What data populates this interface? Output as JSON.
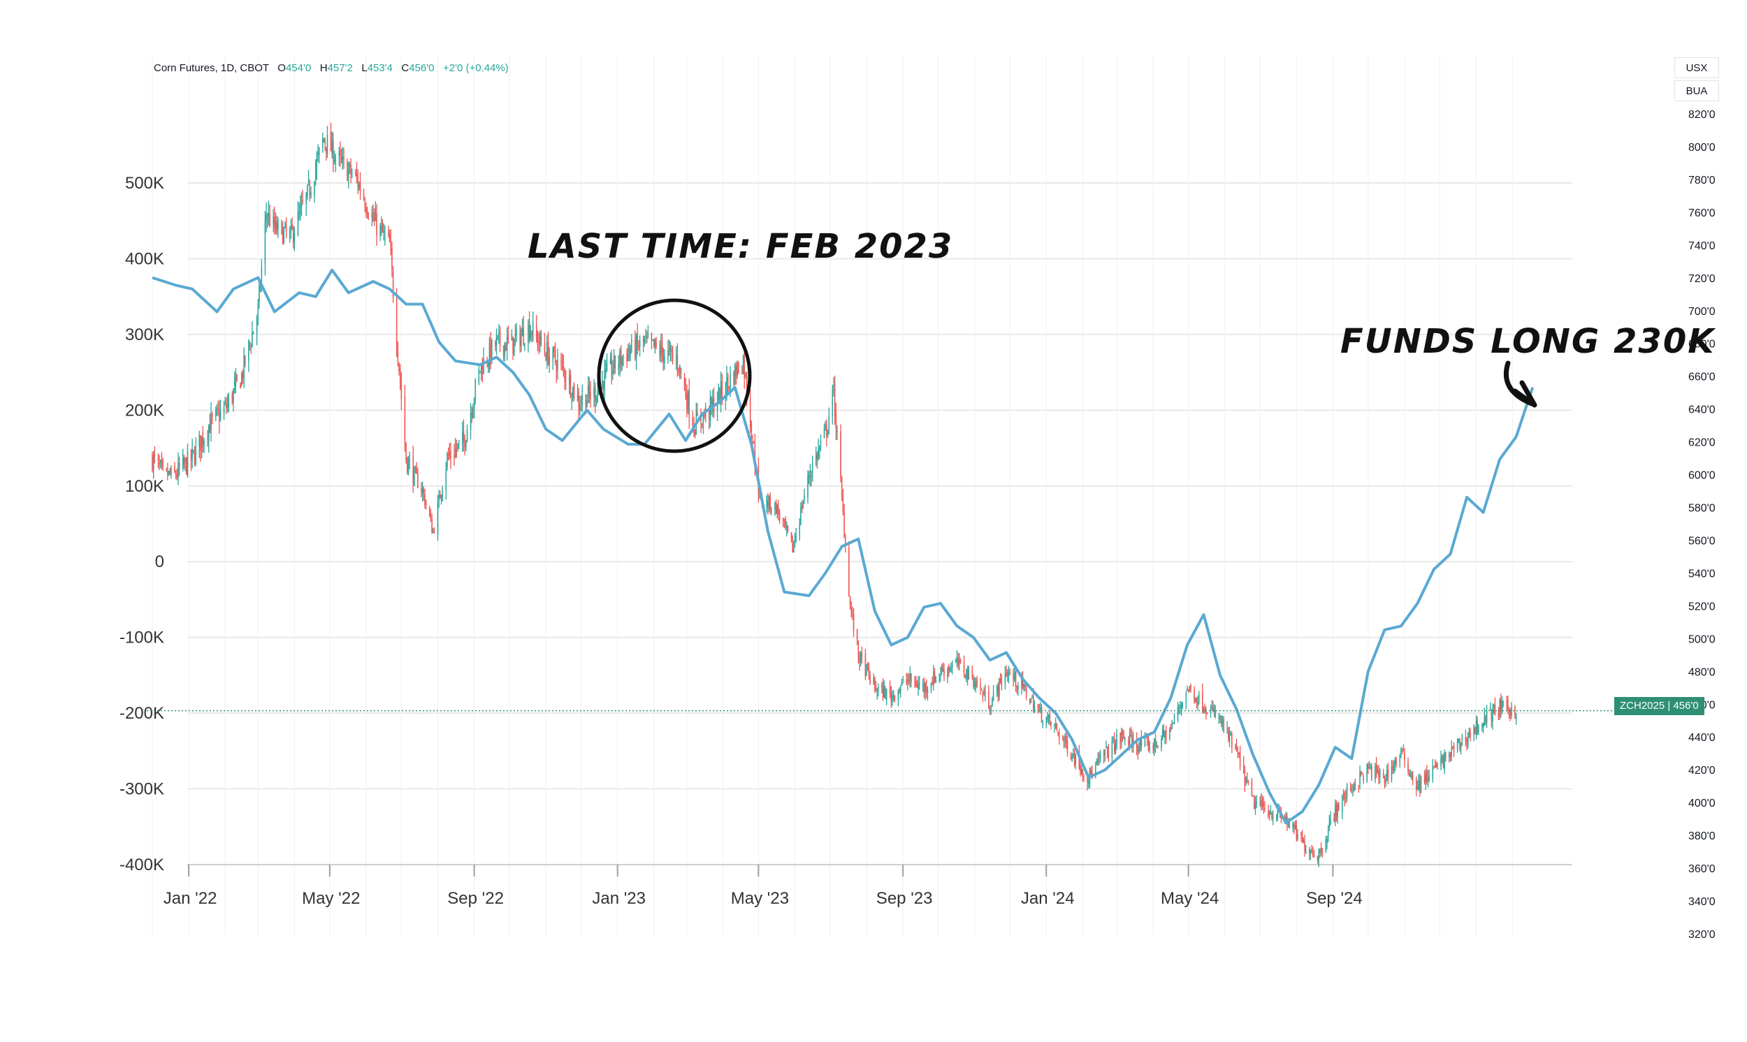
{
  "header": {
    "symbol": "Corn Futures, 1D, CBOT",
    "open_label": "O",
    "open": "454'0",
    "high_label": "H",
    "high": "457'2",
    "low_label": "L",
    "low": "453'4",
    "close_label": "C",
    "close": "456'0",
    "change": "+2'0 (+0.44%)"
  },
  "units": {
    "top": "USX",
    "bottom": "BUA"
  },
  "price_tag": {
    "symbol": "ZCH2025",
    "price": "456'0"
  },
  "annotations": {
    "left": "LAST TIME: FEB 2023",
    "right": "FUNDS LONG 230K"
  },
  "colors": {
    "up": "#26a69a",
    "down": "#ef5350",
    "positions_line": "#5aa9d2",
    "grid": "#e8e8e8",
    "annotation": "#111111",
    "tag": "#2f8f74"
  },
  "chart_data": {
    "type": "line",
    "x_tick_labels": [
      "Jan '22",
      "May '22",
      "Sep '22",
      "Jan '23",
      "May '23",
      "Sep '23",
      "Jan '24",
      "May '24",
      "Sep '24"
    ],
    "x_tick_dates": [
      "2022-01-01",
      "2022-05-01",
      "2022-09-01",
      "2023-01-01",
      "2023-05-01",
      "2023-09-01",
      "2024-01-01",
      "2024-05-01",
      "2024-09-01"
    ],
    "x_range": [
      "2021-12-01",
      "2025-02-28"
    ],
    "y_left": {
      "label": "",
      "ticks": [
        "500K",
        "400K",
        "300K",
        "200K",
        "100K",
        "0",
        "-100K",
        "-200K",
        "-300K",
        "-400K"
      ],
      "tick_values": [
        500000,
        400000,
        300000,
        200000,
        100000,
        0,
        -100000,
        -200000,
        -300000,
        -400000
      ],
      "range": [
        -400000,
        500000
      ]
    },
    "y_right": {
      "label": "",
      "ticks": [
        "820'0",
        "800'0",
        "780'0",
        "760'0",
        "740'0",
        "720'0",
        "700'0",
        "680'0",
        "660'0",
        "640'0",
        "620'0",
        "600'0",
        "580'0",
        "560'0",
        "540'0",
        "520'0",
        "500'0",
        "480'0",
        "460'0",
        "440'0",
        "420'0",
        "400'0",
        "380'0",
        "360'0",
        "340'0",
        "320'0"
      ],
      "tick_values": [
        820,
        800,
        780,
        760,
        740,
        720,
        700,
        680,
        660,
        640,
        620,
        600,
        580,
        560,
        540,
        520,
        500,
        480,
        460,
        440,
        420,
        400,
        380,
        360,
        340,
        320
      ],
      "range": [
        320,
        820
      ]
    },
    "grid": true,
    "series": [
      {
        "name": "",
        "axis": "left",
        "points": [
          [
            "2021-12-01",
            375000
          ],
          [
            "2021-12-21",
            365000
          ],
          [
            "2022-01-04",
            360000
          ],
          [
            "2022-01-25",
            330000
          ],
          [
            "2022-02-08",
            360000
          ],
          [
            "2022-03-01",
            375000
          ],
          [
            "2022-03-15",
            330000
          ],
          [
            "2022-04-05",
            355000
          ],
          [
            "2022-04-19",
            350000
          ],
          [
            "2022-05-03",
            385000
          ],
          [
            "2022-05-17",
            355000
          ],
          [
            "2022-06-07",
            370000
          ],
          [
            "2022-06-21",
            360000
          ],
          [
            "2022-07-05",
            340000
          ],
          [
            "2022-07-19",
            340000
          ],
          [
            "2022-08-02",
            290000
          ],
          [
            "2022-08-16",
            265000
          ],
          [
            "2022-09-06",
            260000
          ],
          [
            "2022-09-20",
            270000
          ],
          [
            "2022-10-04",
            250000
          ],
          [
            "2022-10-18",
            220000
          ],
          [
            "2022-11-01",
            175000
          ],
          [
            "2022-11-15",
            160000
          ],
          [
            "2022-12-06",
            200000
          ],
          [
            "2022-12-20",
            175000
          ],
          [
            "2023-01-10",
            155000
          ],
          [
            "2023-01-24",
            155000
          ],
          [
            "2023-02-14",
            195000
          ],
          [
            "2023-02-28",
            160000
          ],
          [
            "2023-03-14",
            195000
          ],
          [
            "2023-03-28",
            210000
          ],
          [
            "2023-04-11",
            230000
          ],
          [
            "2023-04-25",
            155000
          ],
          [
            "2023-05-09",
            40000
          ],
          [
            "2023-05-23",
            -40000
          ],
          [
            "2023-06-13",
            -45000
          ],
          [
            "2023-06-27",
            -15000
          ],
          [
            "2023-07-11",
            20000
          ],
          [
            "2023-07-25",
            30000
          ],
          [
            "2023-08-08",
            -65000
          ],
          [
            "2023-08-22",
            -110000
          ],
          [
            "2023-09-05",
            -100000
          ],
          [
            "2023-09-19",
            -60000
          ],
          [
            "2023-10-03",
            -55000
          ],
          [
            "2023-10-17",
            -85000
          ],
          [
            "2023-10-31",
            -100000
          ],
          [
            "2023-11-14",
            -130000
          ],
          [
            "2023-11-28",
            -120000
          ],
          [
            "2023-12-12",
            -155000
          ],
          [
            "2023-12-26",
            -180000
          ],
          [
            "2024-01-09",
            -200000
          ],
          [
            "2024-01-23",
            -235000
          ],
          [
            "2024-02-06",
            -285000
          ],
          [
            "2024-02-20",
            -275000
          ],
          [
            "2024-03-05",
            -255000
          ],
          [
            "2024-03-19",
            -235000
          ],
          [
            "2024-04-02",
            -225000
          ],
          [
            "2024-04-16",
            -180000
          ],
          [
            "2024-04-30",
            -110000
          ],
          [
            "2024-05-14",
            -70000
          ],
          [
            "2024-05-28",
            -150000
          ],
          [
            "2024-06-11",
            -195000
          ],
          [
            "2024-06-25",
            -255000
          ],
          [
            "2024-07-09",
            -305000
          ],
          [
            "2024-07-23",
            -345000
          ],
          [
            "2024-08-06",
            -330000
          ],
          [
            "2024-08-20",
            -295000
          ],
          [
            "2024-09-03",
            -245000
          ],
          [
            "2024-09-17",
            -260000
          ],
          [
            "2024-10-01",
            -145000
          ],
          [
            "2024-10-15",
            -90000
          ],
          [
            "2024-10-29",
            -85000
          ],
          [
            "2024-11-12",
            -55000
          ],
          [
            "2024-11-26",
            -10000
          ],
          [
            "2024-12-10",
            10000
          ],
          [
            "2024-12-24",
            85000
          ],
          [
            "2025-01-07",
            65000
          ],
          [
            "2025-01-21",
            135000
          ],
          [
            "2025-02-04",
            165000
          ],
          [
            "2025-02-18",
            230000
          ]
        ]
      },
      {
        "name": "",
        "axis": "right",
        "style": "candlestick",
        "close_path": [
          [
            "2021-12-01",
            610
          ],
          [
            "2021-12-10",
            600
          ],
          [
            "2021-12-21",
            600
          ],
          [
            "2022-01-04",
            610
          ],
          [
            "2022-01-18",
            630
          ],
          [
            "2022-02-01",
            640
          ],
          [
            "2022-02-15",
            660
          ],
          [
            "2022-03-01",
            700
          ],
          [
            "2022-03-08",
            760
          ],
          [
            "2022-03-15",
            750
          ],
          [
            "2022-03-29",
            745
          ],
          [
            "2022-04-12",
            770
          ],
          [
            "2022-04-26",
            805
          ],
          [
            "2022-05-10",
            790
          ],
          [
            "2022-05-24",
            780
          ],
          [
            "2022-06-07",
            755
          ],
          [
            "2022-06-21",
            740
          ],
          [
            "2022-07-05",
            610
          ],
          [
            "2022-07-19",
            590
          ],
          [
            "2022-07-28",
            565
          ],
          [
            "2022-08-09",
            610
          ],
          [
            "2022-08-23",
            620
          ],
          [
            "2022-09-06",
            665
          ],
          [
            "2022-09-20",
            680
          ],
          [
            "2022-10-04",
            680
          ],
          [
            "2022-10-18",
            690
          ],
          [
            "2022-11-01",
            675
          ],
          [
            "2022-11-15",
            665
          ],
          [
            "2022-11-29",
            645
          ],
          [
            "2022-12-13",
            650
          ],
          [
            "2022-12-27",
            665
          ],
          [
            "2023-01-10",
            675
          ],
          [
            "2023-01-24",
            680
          ],
          [
            "2023-02-07",
            675
          ],
          [
            "2023-02-21",
            670
          ],
          [
            "2023-03-07",
            630
          ],
          [
            "2023-03-21",
            640
          ],
          [
            "2023-04-04",
            655
          ],
          [
            "2023-04-18",
            670
          ],
          [
            "2023-05-02",
            585
          ],
          [
            "2023-05-16",
            580
          ],
          [
            "2023-05-30",
            555
          ],
          [
            "2023-06-13",
            600
          ],
          [
            "2023-06-27",
            625
          ],
          [
            "2023-07-04",
            650
          ],
          [
            "2023-07-18",
            520
          ],
          [
            "2023-07-25",
            490
          ],
          [
            "2023-08-08",
            470
          ],
          [
            "2023-08-22",
            465
          ],
          [
            "2023-09-05",
            475
          ],
          [
            "2023-09-19",
            470
          ],
          [
            "2023-10-03",
            480
          ],
          [
            "2023-10-17",
            485
          ],
          [
            "2023-10-31",
            475
          ],
          [
            "2023-11-14",
            460
          ],
          [
            "2023-11-28",
            480
          ],
          [
            "2023-12-12",
            470
          ],
          [
            "2023-12-26",
            455
          ],
          [
            "2024-01-09",
            445
          ],
          [
            "2024-01-23",
            430
          ],
          [
            "2024-02-06",
            415
          ],
          [
            "2024-02-20",
            430
          ],
          [
            "2024-03-05",
            440
          ],
          [
            "2024-03-19",
            435
          ],
          [
            "2024-04-02",
            435
          ],
          [
            "2024-04-16",
            445
          ],
          [
            "2024-04-30",
            470
          ],
          [
            "2024-05-14",
            460
          ],
          [
            "2024-05-28",
            450
          ],
          [
            "2024-06-11",
            430
          ],
          [
            "2024-06-25",
            400
          ],
          [
            "2024-07-09",
            395
          ],
          [
            "2024-07-23",
            390
          ],
          [
            "2024-08-06",
            375
          ],
          [
            "2024-08-20",
            368
          ],
          [
            "2024-09-03",
            395
          ],
          [
            "2024-09-17",
            410
          ],
          [
            "2024-10-01",
            420
          ],
          [
            "2024-10-15",
            415
          ],
          [
            "2024-10-29",
            430
          ],
          [
            "2024-11-12",
            410
          ],
          [
            "2024-11-26",
            420
          ],
          [
            "2024-12-10",
            430
          ],
          [
            "2024-12-24",
            440
          ],
          [
            "2025-01-07",
            450
          ],
          [
            "2025-01-21",
            458
          ],
          [
            "2025-02-04",
            456
          ]
        ]
      }
    ],
    "last_price_line": 456
  }
}
